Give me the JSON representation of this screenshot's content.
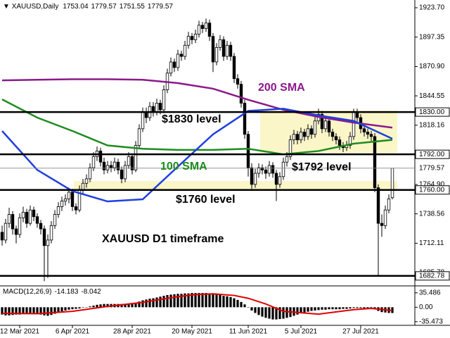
{
  "chart_data": {
    "type": "candlestick",
    "symbol": "XAUUSD,Daily",
    "categories": [
      null,
      null,
      null,
      null,
      null,
      "12 Mar 2021",
      null,
      null,
      null,
      null,
      null,
      null,
      null,
      null,
      null,
      null,
      null,
      null,
      null,
      null,
      "6 Apr 2021",
      null,
      null,
      null,
      null,
      null,
      null,
      null,
      null,
      null,
      null,
      null,
      null,
      null,
      null,
      null,
      null,
      "28 Apr 2021",
      null,
      null,
      null,
      null,
      null,
      null,
      null,
      null,
      null,
      null,
      null,
      null,
      null,
      null,
      null,
      null,
      "20 May 2021",
      null,
      null,
      null,
      null,
      null,
      null,
      null,
      null,
      null,
      null,
      null,
      null,
      null,
      null,
      null,
      "11 Jun 2021",
      null,
      null,
      null,
      null,
      null,
      null,
      null,
      null,
      null,
      null,
      null,
      null,
      null,
      null,
      "5 Jul 2021",
      null,
      null,
      null,
      null,
      null,
      null,
      null,
      null,
      null,
      null,
      null,
      null,
      null,
      null,
      null,
      null,
      "27 Jul 2021",
      null,
      null,
      null,
      null,
      null,
      null,
      null,
      null,
      null
    ],
    "ohlc": [
      [
        1722,
        1728,
        1710,
        1715
      ],
      [
        1715,
        1734,
        1712,
        1730
      ],
      [
        1730,
        1744,
        1726,
        1738
      ],
      [
        1738,
        1741,
        1720,
        1725
      ],
      [
        1725,
        1728,
        1712,
        1720
      ],
      [
        1720,
        1739,
        1717,
        1735
      ],
      [
        1735,
        1745,
        1731,
        1740
      ],
      [
        1740,
        1743,
        1726,
        1730
      ],
      [
        1730,
        1746,
        1728,
        1742
      ],
      [
        1742,
        1745,
        1732,
        1736
      ],
      [
        1736,
        1739,
        1726,
        1730
      ],
      [
        1730,
        1733,
        1720,
        1725
      ],
      [
        1725,
        1728,
        1678,
        1710
      ],
      [
        1710,
        1720,
        1681,
        1715
      ],
      [
        1715,
        1732,
        1712,
        1728
      ],
      [
        1728,
        1742,
        1725,
        1738
      ],
      [
        1738,
        1749,
        1735,
        1745
      ],
      [
        1745,
        1754,
        1741,
        1750
      ],
      [
        1750,
        1756,
        1746,
        1752
      ],
      [
        1752,
        1762,
        1748,
        1758
      ],
      [
        1758,
        1761,
        1741,
        1745
      ],
      [
        1745,
        1748,
        1738,
        1742
      ],
      [
        1742,
        1764,
        1740,
        1760
      ],
      [
        1760,
        1770,
        1756,
        1766
      ],
      [
        1766,
        1774,
        1762,
        1770
      ],
      [
        1770,
        1784,
        1767,
        1780
      ],
      [
        1780,
        1794,
        1777,
        1790
      ],
      [
        1790,
        1799,
        1786,
        1795
      ],
      [
        1795,
        1798,
        1781,
        1785
      ],
      [
        1785,
        1789,
        1774,
        1778
      ],
      [
        1778,
        1786,
        1775,
        1782
      ],
      [
        1782,
        1786,
        1776,
        1780
      ],
      [
        1780,
        1789,
        1777,
        1785
      ],
      [
        1785,
        1788,
        1774,
        1778
      ],
      [
        1778,
        1781,
        1766,
        1770
      ],
      [
        1770,
        1786,
        1767,
        1782
      ],
      [
        1782,
        1794,
        1779,
        1790
      ],
      [
        1790,
        1793,
        1774,
        1778
      ],
      [
        1778,
        1804,
        1776,
        1800
      ],
      [
        1800,
        1819,
        1797,
        1815
      ],
      [
        1815,
        1834,
        1812,
        1830
      ],
      [
        1830,
        1834,
        1820,
        1825
      ],
      [
        1825,
        1839,
        1822,
        1835
      ],
      [
        1835,
        1839,
        1826,
        1830
      ],
      [
        1830,
        1842,
        1827,
        1838
      ],
      [
        1838,
        1841,
        1828,
        1832
      ],
      [
        1832,
        1854,
        1829,
        1850
      ],
      [
        1850,
        1869,
        1847,
        1865
      ],
      [
        1865,
        1879,
        1862,
        1875
      ],
      [
        1875,
        1878,
        1866,
        1870
      ],
      [
        1870,
        1886,
        1867,
        1882
      ],
      [
        1882,
        1885,
        1876,
        1880
      ],
      [
        1880,
        1894,
        1877,
        1890
      ],
      [
        1890,
        1902,
        1887,
        1898
      ],
      [
        1898,
        1901,
        1891,
        1895
      ],
      [
        1895,
        1904,
        1892,
        1900
      ],
      [
        1900,
        1912,
        1897,
        1908
      ],
      [
        1908,
        1911,
        1901,
        1905
      ],
      [
        1905,
        1914,
        1902,
        1910
      ],
      [
        1910,
        1913,
        1894,
        1898
      ],
      [
        1898,
        1901,
        1866,
        1875
      ],
      [
        1875,
        1892,
        1872,
        1888
      ],
      [
        1888,
        1899,
        1885,
        1895
      ],
      [
        1895,
        1898,
        1876,
        1880
      ],
      [
        1880,
        1894,
        1877,
        1890
      ],
      [
        1890,
        1893,
        1876,
        1880
      ],
      [
        1880,
        1883,
        1856,
        1860
      ],
      [
        1860,
        1864,
        1851,
        1855
      ],
      [
        1855,
        1858,
        1834,
        1838
      ],
      [
        1838,
        1841,
        1806,
        1810
      ],
      [
        1810,
        1813,
        1772,
        1780
      ],
      [
        1780,
        1784,
        1761,
        1765
      ],
      [
        1765,
        1779,
        1762,
        1775
      ],
      [
        1775,
        1784,
        1771,
        1780
      ],
      [
        1780,
        1783,
        1774,
        1778
      ],
      [
        1778,
        1781,
        1770,
        1775
      ],
      [
        1775,
        1786,
        1772,
        1782
      ],
      [
        1782,
        1785,
        1771,
        1775
      ],
      [
        1775,
        1778,
        1750,
        1765
      ],
      [
        1765,
        1776,
        1762,
        1772
      ],
      [
        1772,
        1789,
        1769,
        1785
      ],
      [
        1785,
        1794,
        1781,
        1790
      ],
      [
        1790,
        1809,
        1787,
        1805
      ],
      [
        1805,
        1814,
        1801,
        1810
      ],
      [
        1810,
        1813,
        1801,
        1805
      ],
      [
        1805,
        1816,
        1802,
        1812
      ],
      [
        1812,
        1815,
        1804,
        1808
      ],
      [
        1808,
        1819,
        1805,
        1815
      ],
      [
        1815,
        1818,
        1806,
        1810
      ],
      [
        1810,
        1826,
        1807,
        1822
      ],
      [
        1822,
        1833,
        1819,
        1828
      ],
      [
        1828,
        1831,
        1811,
        1815
      ],
      [
        1815,
        1826,
        1812,
        1822
      ],
      [
        1822,
        1825,
        1808,
        1812
      ],
      [
        1812,
        1815,
        1804,
        1808
      ],
      [
        1808,
        1811,
        1801,
        1805
      ],
      [
        1805,
        1808,
        1796,
        1800
      ],
      [
        1800,
        1803,
        1794,
        1798
      ],
      [
        1798,
        1804,
        1795,
        1800
      ],
      [
        1800,
        1812,
        1797,
        1808
      ],
      [
        1808,
        1833,
        1805,
        1830
      ],
      [
        1830,
        1833,
        1821,
        1825
      ],
      [
        1825,
        1828,
        1811,
        1815
      ],
      [
        1815,
        1818,
        1808,
        1812
      ],
      [
        1812,
        1815,
        1806,
        1810
      ],
      [
        1810,
        1813,
        1804,
        1808
      ],
      [
        1808,
        1811,
        1758,
        1762
      ],
      [
        1762,
        1765,
        1682.78,
        1730
      ],
      [
        1730,
        1738,
        1718,
        1728
      ],
      [
        1728,
        1746,
        1725,
        1742
      ],
      [
        1742,
        1756,
        1739,
        1752
      ],
      [
        1753.04,
        1779.57,
        1751.55,
        1779.57
      ]
    ],
    "up_color": "#ffffff",
    "down_color": "#000000",
    "ylim": [
      1673.8,
      1929.4
    ],
    "yticks": [
      {
        "value": 1923.7,
        "label": "1923.70"
      },
      1897.35,
      {
        "value": 1870.9,
        "label": "1870.90"
      },
      1844.55,
      1818.16,
      {
        "value": 1764.9,
        "label": "1764.90"
      },
      1738.56,
      1712.11,
      1685.78
    ],
    "levels": [
      {
        "value": 1830,
        "label": "1830.00"
      },
      {
        "value": 1792,
        "label": "1792.00"
      },
      {
        "value": 1760,
        "label": "1760.00"
      },
      1682.78
    ],
    "ma": [
      {
        "color": "#8b1a8b",
        "x": [
          0,
          10,
          20,
          30,
          40,
          50,
          60,
          70,
          80,
          90,
          100,
          111
        ],
        "values": [
          1858.5,
          1859,
          1859.5,
          1859.5,
          1859,
          1856,
          1851,
          1841,
          1832,
          1825.6,
          1820.5,
          1816
        ]
      },
      {
        "color": "#1e8c1e",
        "x": [
          0,
          10,
          20,
          30,
          40,
          50,
          60,
          70,
          80,
          90,
          100,
          111
        ],
        "values": [
          1841.4,
          1825,
          1813,
          1800,
          1797,
          1796,
          1796,
          1797,
          1792,
          1795,
          1801.6,
          1805
        ]
      },
      {
        "color": "#1f3fe0",
        "x": [
          0,
          10,
          20,
          30,
          40,
          50,
          60,
          70,
          80,
          90,
          100,
          111
        ],
        "values": [
          1813,
          1778,
          1759,
          1749.7,
          1751.6,
          1781,
          1810,
          1831,
          1833,
          1827,
          1822,
          1806
        ]
      }
    ],
    "annotations": [
      "$1830 level",
      "200 SMA",
      "100 SMA",
      "$1792 level",
      "$1760 level",
      "XAUUSD D1 timeframe"
    ],
    "macd": {
      "label": "MACD(12,26,9)",
      "hist": [
        -18,
        -20,
        -20,
        -19,
        -18,
        -18,
        -17,
        -17,
        -16,
        -16,
        -17,
        -18,
        -20,
        -21,
        -19,
        -16,
        -13,
        -10,
        -8,
        -6,
        -5,
        -4,
        -3,
        -1,
        0,
        2,
        4,
        6,
        7,
        8,
        8,
        8,
        8,
        8,
        8,
        8,
        9,
        9,
        11,
        14,
        17,
        19,
        21,
        22,
        24,
        26,
        28,
        30,
        31,
        32,
        33,
        33,
        34,
        34,
        35,
        35,
        35,
        35,
        35,
        34,
        32,
        31,
        30,
        28,
        27,
        25,
        22,
        18,
        13,
        7,
        0,
        -8,
        -14,
        -19,
        -23,
        -26,
        -28,
        -30,
        -30,
        -29,
        -28,
        -26,
        -24,
        -21,
        -18,
        -15,
        -13,
        -11,
        -9,
        -8,
        -7,
        -6,
        -6,
        -5,
        -5,
        -5,
        -5,
        -4,
        -4,
        -3,
        -2,
        -2,
        -2,
        -3,
        -3,
        -3,
        -5,
        -9,
        -12,
        -13,
        -14,
        -14.183
      ],
      "hist_color": "#000000",
      "signal": {
        "color": "#e00000",
        "x": [
          0,
          10,
          20,
          30,
          40,
          50,
          55,
          60,
          66,
          70,
          75,
          80,
          90,
          100,
          105,
          111
        ],
        "values": [
          -15,
          -16,
          -10,
          2,
          12,
          26,
          31,
          33,
          29,
          22,
          8,
          -10,
          -17,
          -6,
          -3,
          -8.042
        ]
      },
      "ylim": [
        -41,
        49
      ],
      "yticks": [
        35.486,
        {
          "value": 0,
          "label": "0.00"
        },
        -35.473
      ]
    }
  }
}
